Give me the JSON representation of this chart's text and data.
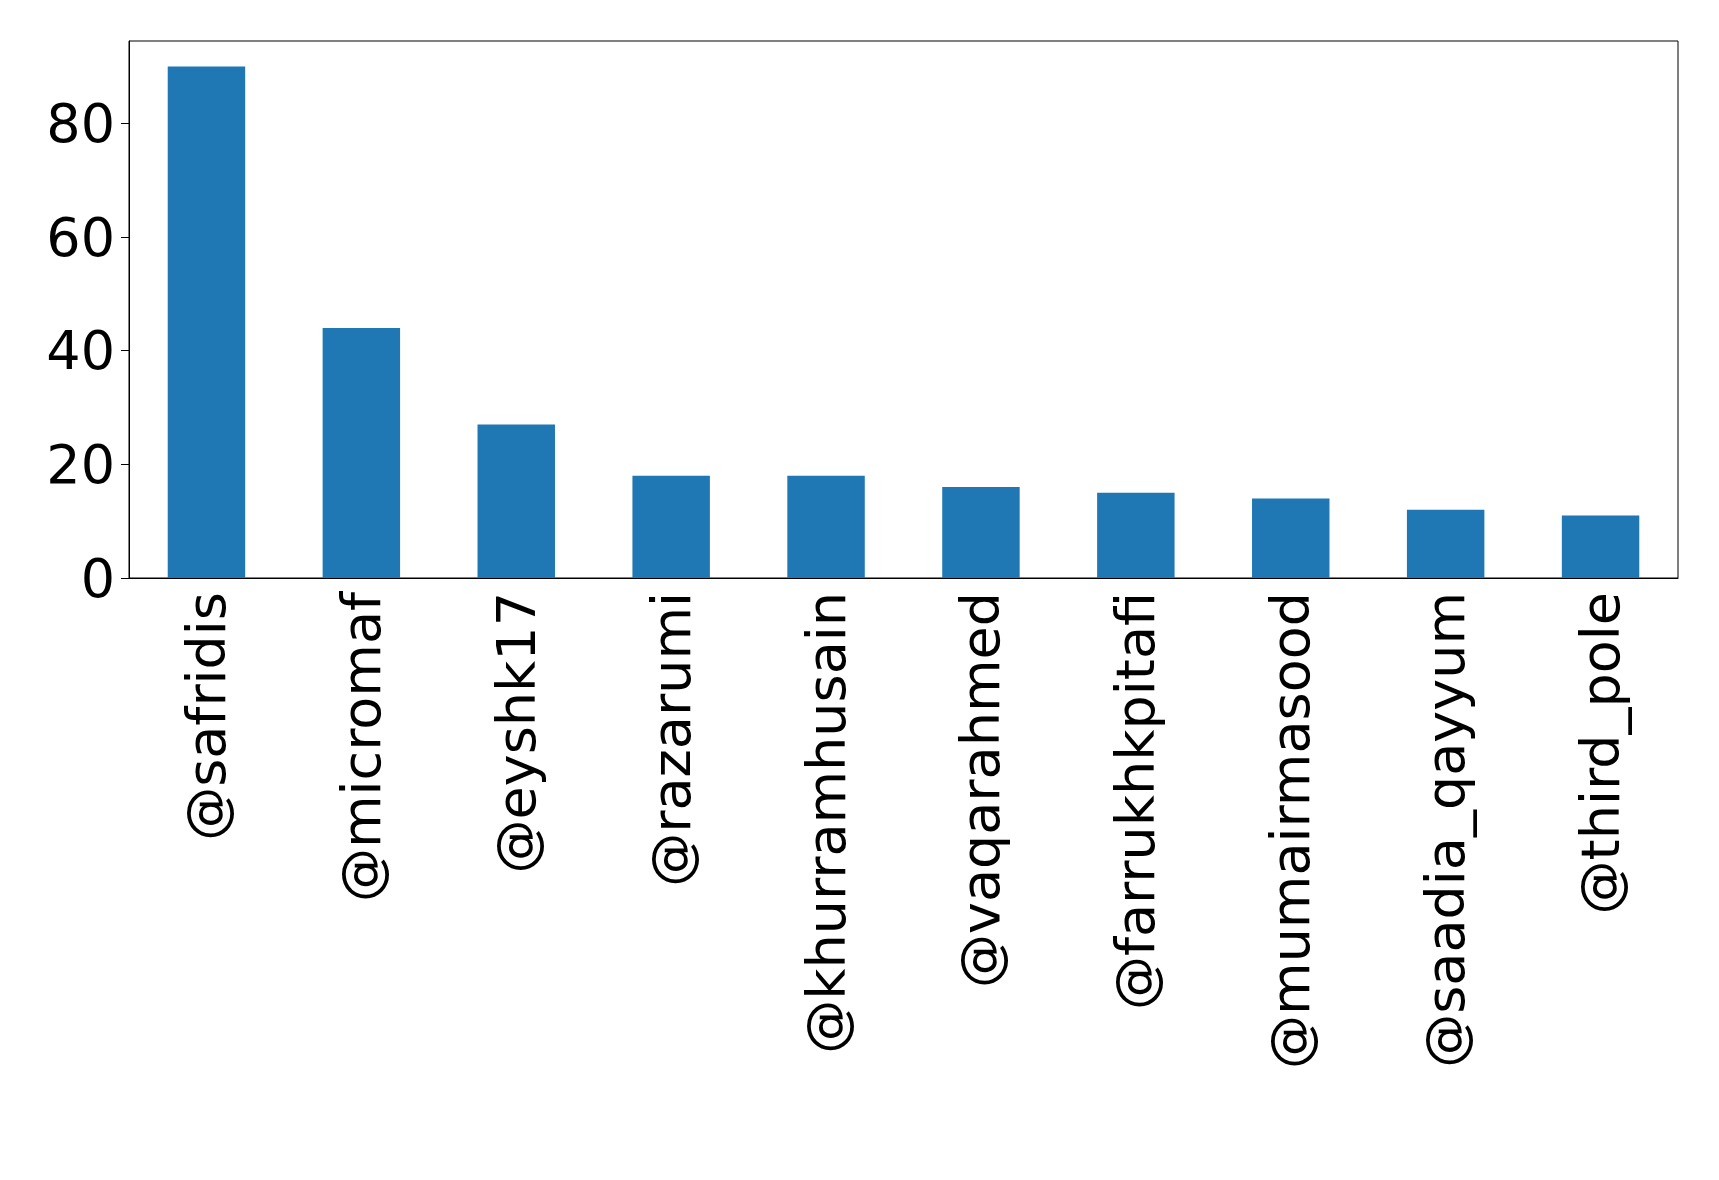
{
  "chart_data": {
    "type": "bar",
    "categories": [
      "@safridis",
      "@micromaf",
      "@eyshk17",
      "@razarumi",
      "@khurramhusain",
      "@vaqarahmed",
      "@farrukhkpitafi",
      "@mumairmasood",
      "@saadia_qayyum",
      "@third_pole"
    ],
    "values": [
      90,
      44,
      27,
      18,
      18,
      16,
      15,
      14,
      12,
      11
    ],
    "color": "#1f77b4",
    "ylim": [
      0,
      94.5
    ],
    "yticks": [
      0,
      20,
      40,
      60,
      80
    ],
    "grid": false
  }
}
